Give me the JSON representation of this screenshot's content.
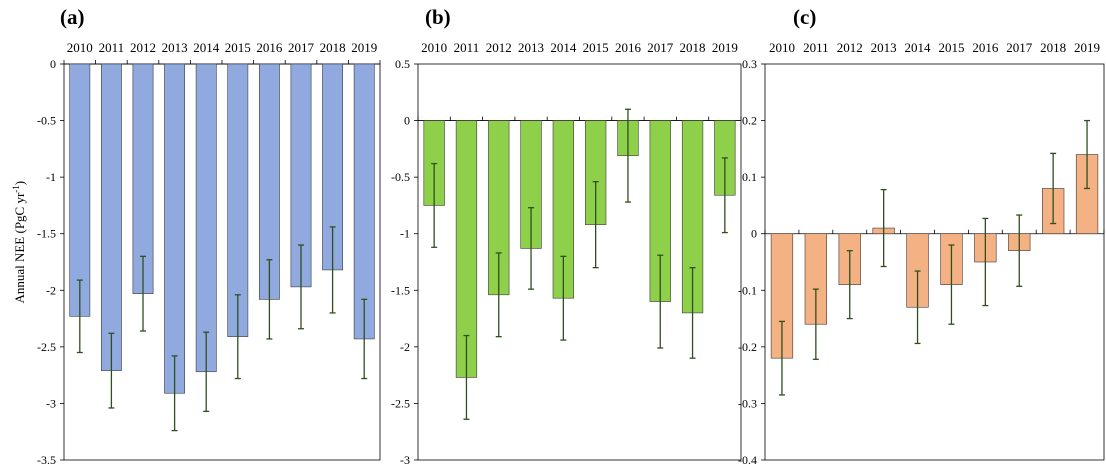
{
  "chart_data": [
    {
      "panel_label": "(a)",
      "type": "bar",
      "categories": [
        "2010",
        "2011",
        "2012",
        "2013",
        "2014",
        "2015",
        "2016",
        "2017",
        "2018",
        "2019"
      ],
      "values": [
        -2.23,
        -2.71,
        -2.03,
        -2.91,
        -2.72,
        -2.41,
        -2.08,
        -1.97,
        -1.82,
        -2.43
      ],
      "errors": [
        0.32,
        0.33,
        0.33,
        0.33,
        0.35,
        0.37,
        0.35,
        0.37,
        0.38,
        0.35
      ],
      "ylim": [
        -3.5,
        0
      ],
      "yticks": [
        0,
        -0.5,
        -1,
        -1.5,
        -2,
        -2.5,
        -3,
        -3.5
      ],
      "ytick_labels": [
        "0",
        "-0.5",
        "-1",
        "-1.5",
        "-2",
        "-2.5",
        "-3",
        "-3.5"
      ],
      "ylabel": "Annual NEE (PgC yr",
      "ylabel_sup": "-1",
      "ylabel_close": ")",
      "bar_color": "#90aadf",
      "error_color": "#2f4f1f",
      "xaxis_position": "top",
      "grid": false
    },
    {
      "panel_label": "(b)",
      "type": "bar",
      "categories": [
        "2010",
        "2011",
        "2012",
        "2013",
        "2014",
        "2015",
        "2016",
        "2017",
        "2018",
        "2019"
      ],
      "values": [
        -0.75,
        -2.27,
        -1.54,
        -1.13,
        -1.57,
        -0.92,
        -0.31,
        -1.6,
        -1.7,
        -0.66
      ],
      "errors": [
        0.37,
        0.37,
        0.37,
        0.36,
        0.37,
        0.38,
        0.41,
        0.41,
        0.4,
        0.33
      ],
      "ylim": [
        -3,
        0.5
      ],
      "yticks": [
        0.5,
        0,
        -0.5,
        -1,
        -1.5,
        -2,
        -2.5,
        -3
      ],
      "ytick_labels": [
        "0.5",
        "0",
        "-0.5",
        "-1",
        "-1.5",
        "-2",
        "-2.5",
        "-3"
      ],
      "bar_color": "#8fd04a",
      "error_color": "#2f4f1f",
      "xaxis_position": "zero",
      "grid": false
    },
    {
      "panel_label": "(c)",
      "type": "bar",
      "categories": [
        "2010",
        "2011",
        "2012",
        "2013",
        "2014",
        "2015",
        "2016",
        "2017",
        "2018",
        "2019"
      ],
      "values": [
        -0.22,
        -0.16,
        -0.09,
        0.01,
        -0.13,
        -0.09,
        -0.05,
        -0.03,
        0.08,
        0.14
      ],
      "errors": [
        0.065,
        0.062,
        0.06,
        0.068,
        0.064,
        0.07,
        0.077,
        0.063,
        0.062,
        0.06
      ],
      "ylim": [
        -0.4,
        0.3
      ],
      "yticks": [
        0.3,
        0.2,
        0.1,
        0,
        -0.1,
        -0.2,
        -0.3,
        -0.4
      ],
      "ytick_labels": [
        "0.3",
        "0.2",
        "0.1",
        "0",
        "-0.1",
        "-0.2",
        "-0.3",
        "-0.4"
      ],
      "bar_color": "#f4b183",
      "error_color": "#2f4f1f",
      "xaxis_position": "zero",
      "grid": false
    }
  ]
}
